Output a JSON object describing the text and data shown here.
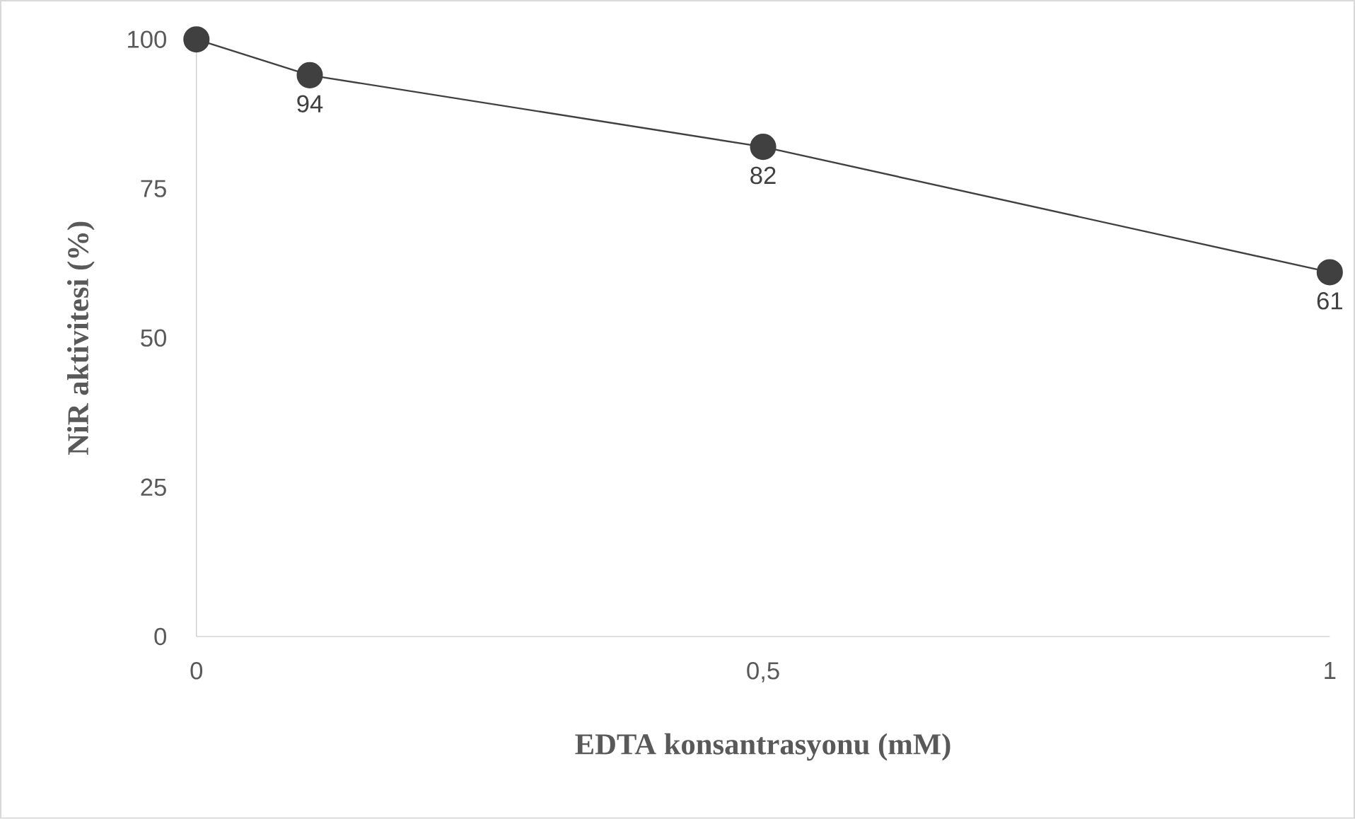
{
  "chart_data": {
    "type": "line",
    "xlabel": "EDTA konsantrasyonu (mM)",
    "ylabel": "NiR aktivitesi (%)",
    "x": [
      0,
      0.1,
      0.5,
      1
    ],
    "values": [
      100,
      94,
      82,
      61
    ],
    "value_labels": [
      null,
      "94",
      "82",
      "61"
    ],
    "color": "#404040",
    "marker": "circle",
    "xlim": [
      0,
      1
    ],
    "ylim": [
      0,
      100
    ],
    "xticks": [
      0,
      {
        "value": 0.5,
        "label": "0,5"
      },
      1
    ],
    "yticks": [
      0,
      25,
      50,
      75,
      100
    ]
  }
}
